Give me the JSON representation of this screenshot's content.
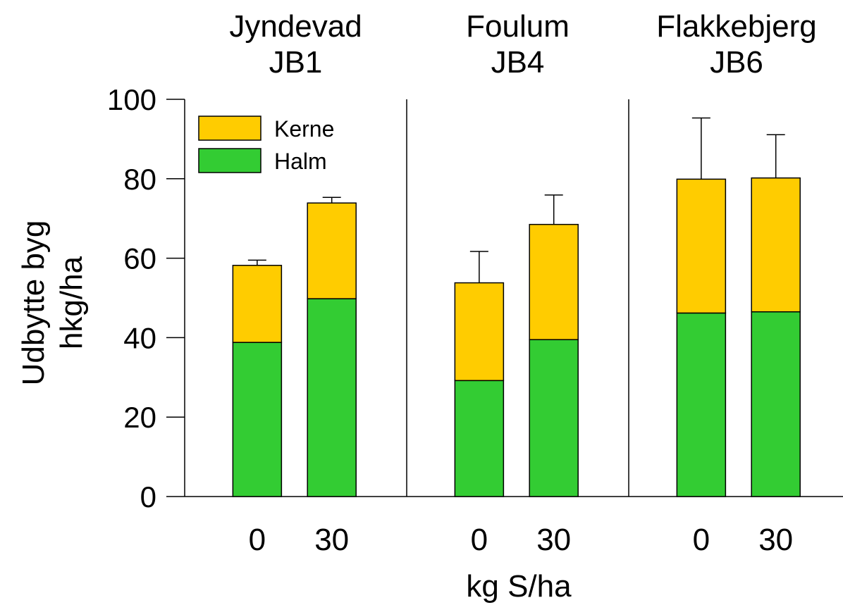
{
  "chart_data": {
    "type": "bar",
    "stacked": true,
    "ylabel_lines": [
      "Udbytte byg",
      "hkg/ha"
    ],
    "xlabel": "kg S/ha",
    "ylim": [
      0,
      100
    ],
    "yticks": [
      "0",
      "20",
      "40",
      "60",
      "80",
      "100"
    ],
    "legend": {
      "placement": "top-left",
      "entries": [
        {
          "label": "Kerne",
          "color": "#FFCC00"
        },
        {
          "label": "Halm",
          "color": "#33CC33"
        }
      ]
    },
    "panels": [
      {
        "title_lines": [
          "Jyndevad",
          "JB1"
        ],
        "categories": [
          "0",
          "30"
        ],
        "series": [
          {
            "name": "Halm",
            "values": [
              38.8,
              49.8
            ]
          },
          {
            "name": "Kerne",
            "values": [
              19.4,
              24.1
            ]
          }
        ],
        "totals": [
          58.2,
          73.9
        ],
        "error_upper": [
          59.5,
          75.3
        ]
      },
      {
        "title_lines": [
          "Foulum",
          "JB4"
        ],
        "categories": [
          "0",
          "30"
        ],
        "series": [
          {
            "name": "Halm",
            "values": [
              29.2,
              39.5
            ]
          },
          {
            "name": "Kerne",
            "values": [
              24.6,
              29.0
            ]
          }
        ],
        "totals": [
          53.8,
          68.5
        ],
        "error_upper": [
          61.7,
          75.9
        ]
      },
      {
        "title_lines": [
          "Flakkebjerg",
          "JB6"
        ],
        "categories": [
          "0",
          "30"
        ],
        "series": [
          {
            "name": "Halm",
            "values": [
              46.2,
              46.5
            ]
          },
          {
            "name": "Kerne",
            "values": [
              33.7,
              33.7
            ]
          }
        ],
        "totals": [
          79.9,
          80.2
        ],
        "error_upper": [
          95.3,
          91.1
        ]
      }
    ]
  }
}
